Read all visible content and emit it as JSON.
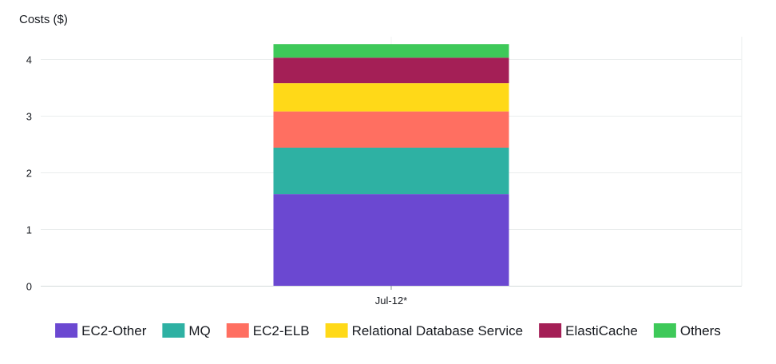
{
  "chart_data": {
    "type": "bar",
    "stacked": true,
    "categories": [
      "Jul-12*"
    ],
    "series": [
      {
        "name": "EC2-Other",
        "values": [
          1.62
        ],
        "color": "#6b48d1"
      },
      {
        "name": "MQ",
        "values": [
          0.82
        ],
        "color": "#2eb1a3"
      },
      {
        "name": "EC2-ELB",
        "values": [
          0.64
        ],
        "color": "#ff6f61"
      },
      {
        "name": "Relational Database Service",
        "values": [
          0.5
        ],
        "color": "#ffd918"
      },
      {
        "name": "ElastiCache",
        "values": [
          0.45
        ],
        "color": "#a41f56"
      },
      {
        "name": "Others",
        "values": [
          0.24
        ],
        "color": "#3ec959"
      }
    ],
    "ylabel": "Costs ($)",
    "xlabel": "",
    "ylim": [
      0,
      4.4
    ],
    "yticks": [
      "0",
      "1",
      "2",
      "3",
      "4"
    ],
    "grid": true,
    "legend_position": "bottom"
  }
}
